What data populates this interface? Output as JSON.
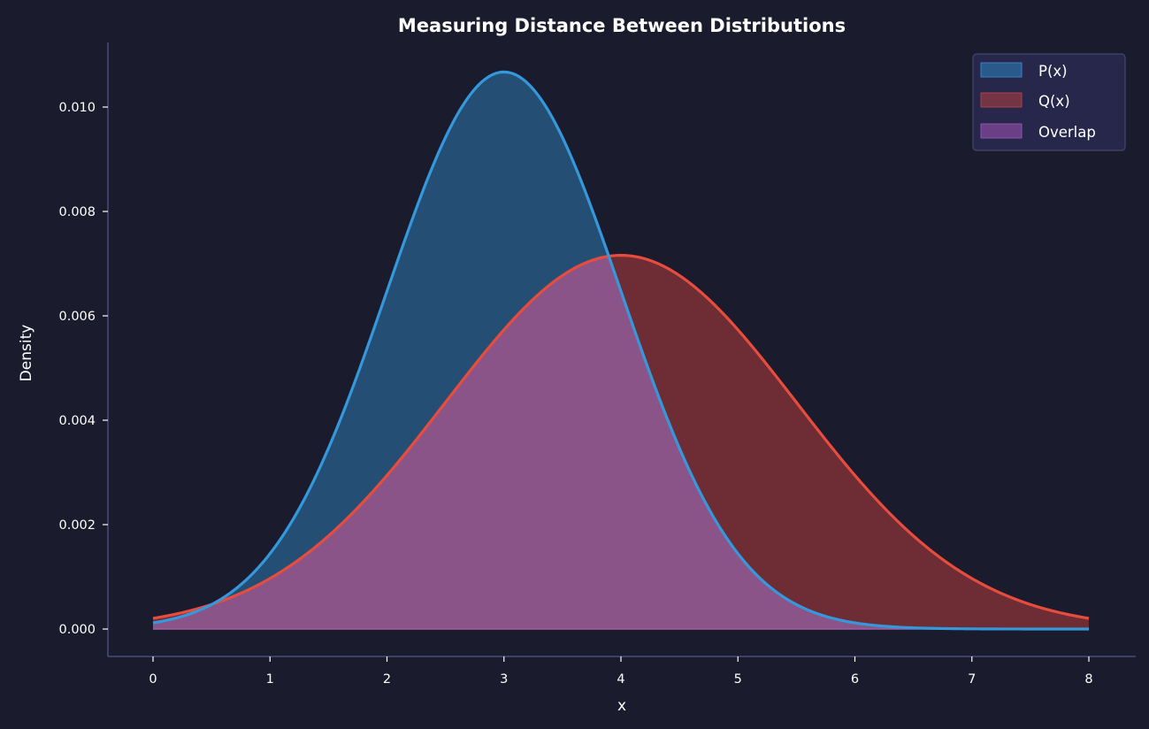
{
  "chart_data": {
    "type": "area",
    "title": "Measuring Distance Between Distributions",
    "xlabel": "x",
    "ylabel": "Density",
    "xlim": [
      -0.38,
      8.4
    ],
    "ylim": [
      -0.000525,
      0.01125
    ],
    "x_ticks": [
      0,
      1,
      2,
      3,
      4,
      5,
      6,
      7,
      8
    ],
    "x_tick_labels": [
      "0",
      "1",
      "2",
      "3",
      "4",
      "5",
      "6",
      "7",
      "8"
    ],
    "y_ticks": [
      0.0,
      0.002,
      0.004,
      0.006,
      0.008,
      0.01
    ],
    "y_tick_labels": [
      "0.000",
      "0.002",
      "0.004",
      "0.006",
      "0.008",
      "0.010"
    ],
    "grid": false,
    "legend_position": "upper right",
    "x_range": [
      0,
      8
    ],
    "series": [
      {
        "name": "P(x)",
        "distribution": "normal",
        "mean": 3.0,
        "std": 1.0,
        "scale": 0.02675,
        "peak_density": 0.01067,
        "line_color": "#3498db",
        "fill_color": "#2980b9",
        "fill_alpha": 0.5
      },
      {
        "name": "Q(x)",
        "distribution": "normal",
        "mean": 4.0,
        "std": 1.5,
        "scale": 0.02692,
        "peak_density": 0.00716,
        "line_color": "#e74c3c",
        "fill_color": "#c0392b",
        "fill_alpha": 0.5
      },
      {
        "name": "Overlap",
        "definition": "min(P(x), Q(x))",
        "fill_color": "#8e44ad",
        "fill_alpha": 0.6
      }
    ],
    "sample_points": {
      "x": [
        0,
        1,
        2,
        3,
        3.85,
        4,
        5,
        6,
        7,
        8
      ],
      "P": [
        0.00012,
        0.00145,
        0.00649,
        0.01067,
        0.00741,
        0.00649,
        0.00145,
        0.00012,
        0.0,
        0.0
      ],
      "Q": [
        0.00021,
        0.00094,
        0.00293,
        0.00575,
        0.00712,
        0.00716,
        0.00575,
        0.00293,
        0.00094,
        0.00021
      ]
    }
  },
  "legend": {
    "items": [
      {
        "label": "P(x)",
        "color": "#2a5a8c",
        "border": "#3d7fc0"
      },
      {
        "label": "Q(x)",
        "color": "#733543",
        "border": "#a9424d"
      },
      {
        "label": "Overlap",
        "color": "#6a3f86",
        "border": "#8a55ad"
      }
    ]
  },
  "colors": {
    "background": "#1b1b2e",
    "spine": "#4a4a7a",
    "legend_bg": "#26274a",
    "legend_border": "#45456e",
    "p_line": "#3498db",
    "q_line": "#e74c3c",
    "p_fill": "#244e74",
    "q_fill": "#6e2c35",
    "overlap_fill": "#8a5489"
  }
}
